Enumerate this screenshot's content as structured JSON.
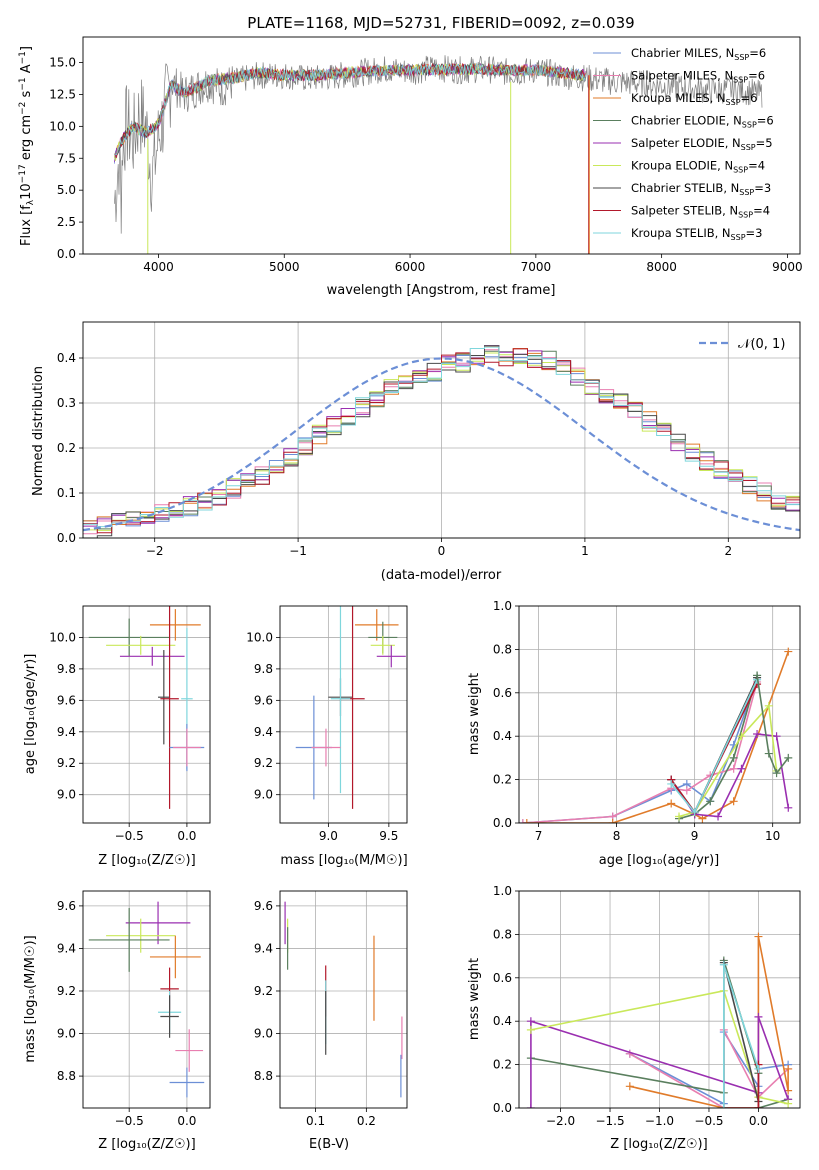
{
  "palette": [
    "#6c8fd6",
    "#e87fb0",
    "#e07b2a",
    "#5a7f5e",
    "#9a2fb0",
    "#c9e85a",
    "#4a4a4a",
    "#b2182b",
    "#7fd6dc"
  ],
  "chart_data": [
    {
      "id": "spectrum",
      "type": "line",
      "title": "PLATE=1168, MJD=52731, FIBERID=0092, z=0.039",
      "xlabel": "wavelength [Angstrom, rest frame]",
      "ylabel_main": "Flux [f",
      "ylabel_sub": "λ",
      "ylabel_rest": "10",
      "ylabel_exp": "−17",
      "ylabel_tail": " erg cm",
      "xlim": [
        3400,
        9100
      ],
      "ylim": [
        0,
        17
      ],
      "xticks": [
        4000,
        5000,
        6000,
        7000,
        8000,
        9000
      ],
      "yticks": [
        0.0,
        2.5,
        5.0,
        7.5,
        10.0,
        12.5,
        15.0
      ],
      "grid": false,
      "legend": "upper-right",
      "data_note": "observed spectrum (grey), 9 SSP model fits overplotted",
      "observed": {
        "name": "data",
        "color": "#808080",
        "x": [
          3650,
          3700,
          3750,
          3800,
          3850,
          3900,
          3950,
          4000,
          4100,
          4200,
          4300,
          4400,
          4500,
          4600,
          4800,
          5000,
          5200,
          5400,
          5600,
          5800,
          6000,
          6200,
          6400,
          6600,
          6800,
          7000,
          7200,
          7400,
          7600,
          7800,
          8000,
          8200,
          8400,
          8600,
          8800
        ],
        "y": [
          4.0,
          9.0,
          10.0,
          9.0,
          11.0,
          10.0,
          6.0,
          9.0,
          13.5,
          12.5,
          13.0,
          13.5,
          13.0,
          13.5,
          14.0,
          14.0,
          13.7,
          13.9,
          14.2,
          14.5,
          14.3,
          14.6,
          14.4,
          14.5,
          14.2,
          14.4,
          14.0,
          13.8,
          13.5,
          13.4,
          13.2,
          13.0,
          12.8,
          12.9,
          12.5
        ]
      },
      "series": [
        {
          "name": "Chabrier MILES",
          "nssp": "6"
        },
        {
          "name": "Salpeter MILES",
          "nssp": "6"
        },
        {
          "name": "Kroupa MILES",
          "nssp": "6"
        },
        {
          "name": "Chabrier ELODIE",
          "nssp": "6"
        },
        {
          "name": "Salpeter ELODIE",
          "nssp": "5"
        },
        {
          "name": "Kroupa ELODIE",
          "nssp": "4"
        },
        {
          "name": "Chabrier STELIB",
          "nssp": "3"
        },
        {
          "name": "Salpeter STELIB",
          "nssp": "4"
        },
        {
          "name": "Kroupa STELIB",
          "nssp": "3"
        }
      ],
      "model_x": [
        3650,
        3700,
        3800,
        3900,
        4000,
        4100,
        4200,
        4300,
        4400,
        4600,
        4800,
        5000,
        5300,
        5600,
        6000,
        6400,
        6800,
        7000,
        7200,
        7400
      ],
      "model_y": [
        7.5,
        8.8,
        10.0,
        9.5,
        10.2,
        13.3,
        12.6,
        13.0,
        13.6,
        13.8,
        14.2,
        14.0,
        14.0,
        14.3,
        14.4,
        14.5,
        14.4,
        14.4,
        14.2,
        14.0
      ]
    },
    {
      "id": "residuals",
      "type": "bar",
      "xlabel": "(data-model)/error",
      "ylabel": "Normed distribution",
      "xlim": [
        -2.5,
        2.5
      ],
      "ylim": [
        0,
        0.48
      ],
      "xticks": [
        -2,
        -1,
        0,
        1,
        2
      ],
      "yticks": [
        0.0,
        0.1,
        0.2,
        0.3,
        0.4
      ],
      "grid": true,
      "legend": "upper-right",
      "legend_label": "𝒩(0, 1)",
      "reference": {
        "name": "normal",
        "mean": 0,
        "sd": 1,
        "color": "#6c8fd6"
      },
      "bin_edges_start": -2.5,
      "bin_width": 0.1,
      "hist": [
        0.02,
        0.025,
        0.035,
        0.04,
        0.05,
        0.055,
        0.06,
        0.07,
        0.08,
        0.095,
        0.11,
        0.125,
        0.14,
        0.16,
        0.18,
        0.2,
        0.23,
        0.25,
        0.27,
        0.29,
        0.31,
        0.33,
        0.35,
        0.36,
        0.37,
        0.385,
        0.39,
        0.4,
        0.41,
        0.405,
        0.41,
        0.4,
        0.395,
        0.38,
        0.36,
        0.34,
        0.32,
        0.3,
        0.28,
        0.26,
        0.24,
        0.21,
        0.19,
        0.17,
        0.15,
        0.13,
        0.115,
        0.1,
        0.085,
        0.07,
        0.06,
        0.05,
        0.04,
        0.035,
        0.03
      ]
    },
    {
      "id": "age_vs_Z",
      "type": "scatter",
      "xlabel": "Z [log₁₀(Z/Z☉)]",
      "ylabel": "age  [log₁₀(age/yr)]",
      "xlim": [
        -0.9,
        0.2
      ],
      "ylim": [
        8.82,
        10.2
      ],
      "xticks": [
        -0.5,
        0.0
      ],
      "xticklabels": [
        "−0.5",
        "0.0"
      ],
      "yticks": [
        9.0,
        9.2,
        9.4,
        9.6,
        9.8,
        10.0
      ],
      "grid": true,
      "points": [
        {
          "x": -0.5,
          "y": 10.0,
          "ex": 0.35,
          "ey": 0.12,
          "c": 3
        },
        {
          "x": -0.4,
          "y": 9.95,
          "ex": 0.3,
          "ey": 0.06,
          "c": 5
        },
        {
          "x": -0.3,
          "y": 9.88,
          "ex": 0.28,
          "ey": 0.06,
          "c": 4
        },
        {
          "x": -0.1,
          "y": 10.08,
          "ex": 0.22,
          "ey": 0.1,
          "c": 2
        },
        {
          "x": -0.2,
          "y": 9.62,
          "ex": 0.05,
          "ey": 0.3,
          "c": 6
        },
        {
          "x": -0.15,
          "y": 9.61,
          "ex": 0.08,
          "ey": 0.7,
          "c": 7
        },
        {
          "x": 0.0,
          "y": 9.61,
          "ex": 0.05,
          "ey": 0.45,
          "c": 8
        },
        {
          "x": 0.0,
          "y": 9.3,
          "ex": 0.15,
          "ey": 0.15,
          "c": 0
        },
        {
          "x": 0.0,
          "y": 9.3,
          "ex": 0.12,
          "ey": 0.12,
          "c": 1
        }
      ]
    },
    {
      "id": "age_vs_mass",
      "type": "scatter",
      "xlabel": "mass [log₁₀(M/M☉)]",
      "xlim": [
        8.6,
        9.65
      ],
      "ylim": [
        8.82,
        10.2
      ],
      "xticks": [
        9.0,
        9.5
      ],
      "xticklabels": [
        "9.0",
        "9.5"
      ],
      "yticks": [
        9.0,
        9.2,
        9.4,
        9.6,
        9.8,
        10.0
      ],
      "grid": true,
      "points": [
        {
          "x": 9.4,
          "y": 10.08,
          "ex": 0.18,
          "ey": 0.1,
          "c": 2
        },
        {
          "x": 9.45,
          "y": 10.0,
          "ex": 0.12,
          "ey": 0.1,
          "c": 3
        },
        {
          "x": 9.45,
          "y": 9.95,
          "ex": 0.1,
          "ey": 0.06,
          "c": 5
        },
        {
          "x": 9.52,
          "y": 9.88,
          "ex": 0.12,
          "ey": 0.07,
          "c": 4
        },
        {
          "x": 9.1,
          "y": 9.62,
          "ex": 0.1,
          "ey": 0.12,
          "c": 6
        },
        {
          "x": 9.2,
          "y": 9.61,
          "ex": 0.1,
          "ey": 0.7,
          "c": 7
        },
        {
          "x": 9.1,
          "y": 9.61,
          "ex": 0.08,
          "ey": 0.6,
          "c": 8
        },
        {
          "x": 8.88,
          "y": 9.3,
          "ex": 0.15,
          "ey": 0.33,
          "c": 0
        },
        {
          "x": 8.98,
          "y": 9.3,
          "ex": 0.12,
          "ey": 0.12,
          "c": 1
        }
      ]
    },
    {
      "id": "weight_vs_age",
      "type": "line",
      "xlabel": "age  [log₁₀(age/yr)]",
      "ylabel": "mass weight",
      "xlim": [
        6.75,
        10.35
      ],
      "ylim": [
        0,
        1.0
      ],
      "xticks": [
        7,
        8,
        9,
        10
      ],
      "yticks": [
        0.0,
        0.2,
        0.4,
        0.6,
        0.8,
        1.0
      ],
      "grid": true,
      "series": [
        {
          "c": 0,
          "x": [
            6.8,
            7.95,
            8.7,
            8.9,
            9.2,
            9.5,
            9.8
          ],
          "y": [
            0.0,
            0.03,
            0.15,
            0.18,
            0.1,
            0.36,
            0.67
          ]
        },
        {
          "c": 1,
          "x": [
            6.8,
            7.95,
            8.7,
            8.9,
            9.2,
            9.5,
            9.8
          ],
          "y": [
            0.0,
            0.03,
            0.16,
            0.15,
            0.22,
            0.25,
            0.65
          ]
        },
        {
          "c": 2,
          "x": [
            6.85,
            7.95,
            8.7,
            9.0,
            9.1,
            9.5,
            10.2
          ],
          "y": [
            0.0,
            0.0,
            0.09,
            0.04,
            0.02,
            0.1,
            0.79
          ]
        },
        {
          "c": 3,
          "x": [
            8.8,
            9.0,
            9.2,
            9.5,
            9.8
          ],
          "y": [
            0.02,
            0.04,
            0.1,
            0.3,
            0.68
          ]
        },
        {
          "c": 4,
          "x": [
            8.7,
            9.0,
            9.3,
            9.6,
            9.8,
            10.05,
            10.2
          ],
          "y": [
            0.2,
            0.04,
            0.03,
            0.25,
            0.41,
            0.4,
            0.07
          ]
        },
        {
          "c": 5,
          "x": [
            8.8,
            9.0,
            9.6,
            9.95,
            10.05
          ],
          "y": [
            0.03,
            0.05,
            0.4,
            0.54,
            0.24
          ]
        },
        {
          "c": 6,
          "x": [
            8.7,
            9.0,
            9.8
          ],
          "y": [
            0.2,
            0.05,
            0.67
          ]
        },
        {
          "c": 7,
          "x": [
            8.7,
            9.0,
            9.8
          ],
          "y": [
            0.2,
            0.05,
            0.64
          ]
        },
        {
          "c": 8,
          "x": [
            8.7,
            9.0,
            9.8
          ],
          "y": [
            0.18,
            0.05,
            0.66
          ]
        },
        {
          "c": 3,
          "x": [
            9.8,
            9.95,
            10.05,
            10.2
          ],
          "y": [
            0.68,
            0.32,
            0.23,
            0.3
          ]
        }
      ]
    },
    {
      "id": "mass_vs_Z",
      "type": "scatter",
      "xlabel": "Z [log₁₀(Z/Z☉)]",
      "ylabel": "mass [log₁₀(M/M☉)]",
      "xlim": [
        -0.9,
        0.2
      ],
      "ylim": [
        8.65,
        9.67
      ],
      "xticks": [
        -0.5,
        0.0
      ],
      "xticklabels": [
        "−0.5",
        "0.0"
      ],
      "yticks": [
        8.8,
        9.0,
        9.2,
        9.4,
        9.6
      ],
      "grid": true,
      "points": [
        {
          "x": -0.25,
          "y": 9.52,
          "ex": 0.28,
          "ey": 0.1,
          "c": 4
        },
        {
          "x": -0.4,
          "y": 9.46,
          "ex": 0.3,
          "ey": 0.08,
          "c": 5
        },
        {
          "x": -0.5,
          "y": 9.44,
          "ex": 0.35,
          "ey": 0.15,
          "c": 3
        },
        {
          "x": -0.1,
          "y": 9.36,
          "ex": 0.22,
          "ey": 0.1,
          "c": 2
        },
        {
          "x": -0.15,
          "y": 9.21,
          "ex": 0.08,
          "ey": 0.1,
          "c": 7
        },
        {
          "x": -0.15,
          "y": 9.1,
          "ex": 0.1,
          "ey": 0.1,
          "c": 8
        },
        {
          "x": -0.15,
          "y": 9.08,
          "ex": 0.08,
          "ey": 0.1,
          "c": 6
        },
        {
          "x": 0.02,
          "y": 8.92,
          "ex": 0.12,
          "ey": 0.1,
          "c": 1
        },
        {
          "x": 0.0,
          "y": 8.77,
          "ex": 0.15,
          "ey": 0.07,
          "c": 0
        }
      ]
    },
    {
      "id": "mass_vs_EBV",
      "type": "scatter",
      "xlabel": "E(B-V)",
      "xlim": [
        0.03,
        0.28
      ],
      "ylim": [
        8.65,
        9.67
      ],
      "xticks": [
        0.1,
        0.2
      ],
      "xticklabels": [
        "0.1",
        "0.2"
      ],
      "yticks": [
        8.8,
        9.0,
        9.2,
        9.4,
        9.6
      ],
      "grid": true,
      "points": [
        {
          "x": 0.04,
          "y": 9.52,
          "ex": 0,
          "ey": 0.1,
          "c": 4
        },
        {
          "x": 0.045,
          "y": 9.46,
          "ex": 0,
          "ey": 0.08,
          "c": 5
        },
        {
          "x": 0.045,
          "y": 9.4,
          "ex": 0,
          "ey": 0.1,
          "c": 3
        },
        {
          "x": 0.215,
          "y": 9.26,
          "ex": 0,
          "ey": 0.2,
          "c": 2
        },
        {
          "x": 0.12,
          "y": 9.2,
          "ex": 0,
          "ey": 0.12,
          "c": 7
        },
        {
          "x": 0.12,
          "y": 9.1,
          "ex": 0,
          "ey": 0.15,
          "c": 8
        },
        {
          "x": 0.12,
          "y": 9.05,
          "ex": 0,
          "ey": 0.15,
          "c": 6
        },
        {
          "x": 0.27,
          "y": 8.98,
          "ex": 0,
          "ey": 0.1,
          "c": 1
        },
        {
          "x": 0.268,
          "y": 8.8,
          "ex": 0,
          "ey": 0.1,
          "c": 0
        }
      ]
    },
    {
      "id": "weight_vs_Z",
      "type": "line",
      "xlabel": "Z [log₁₀(Z/Z☉)]",
      "ylabel": "mass weight",
      "xlim": [
        -2.42,
        0.42
      ],
      "ylim": [
        0,
        1.0
      ],
      "xticks": [
        -2.0,
        -1.5,
        -1.0,
        -0.5,
        0.0
      ],
      "xticklabels": [
        "−2.0",
        "−1.5",
        "−1.0",
        "−0.5",
        "0.0"
      ],
      "yticks": [
        0.0,
        0.2,
        0.4,
        0.6,
        0.8,
        1.0
      ],
      "grid": true,
      "series": [
        {
          "c": 0,
          "x": [
            -1.3,
            -0.35,
            -0.35,
            0.0,
            0.0,
            0.3
          ],
          "y": [
            0.25,
            0.02,
            0.35,
            0.1,
            0.18,
            0.2
          ]
        },
        {
          "c": 1,
          "x": [
            -1.3,
            -0.35,
            -0.35,
            0.0,
            0.3
          ],
          "y": [
            0.25,
            0.0,
            0.36,
            0.05,
            0.18
          ]
        },
        {
          "c": 2,
          "x": [
            -1.3,
            -0.35,
            0.0,
            0.0,
            0.3,
            0.3
          ],
          "y": [
            0.1,
            0.0,
            0.0,
            0.79,
            0.08,
            0.18
          ]
        },
        {
          "c": 3,
          "x": [
            -2.3,
            -0.35,
            -0.35,
            0.0,
            0.0,
            0.3
          ],
          "y": [
            0.23,
            0.07,
            0.68,
            0.16,
            0.0,
            0.04
          ]
        },
        {
          "c": 4,
          "x": [
            -2.3,
            -2.3,
            0.0,
            0.0,
            0.3
          ],
          "y": [
            0.0,
            0.4,
            0.07,
            0.42,
            0.04
          ]
        },
        {
          "c": 5,
          "x": [
            -2.3,
            -0.35,
            0.0,
            0.3
          ],
          "y": [
            0.36,
            0.54,
            0.05,
            0.02
          ]
        },
        {
          "c": 6,
          "x": [
            -0.35,
            -0.35,
            0.0
          ],
          "y": [
            0.0,
            0.67,
            0.03
          ]
        },
        {
          "c": 7,
          "x": [
            -0.35,
            0.0,
            0.0
          ],
          "y": [
            0.0,
            0.0,
            0.2
          ]
        },
        {
          "c": 8,
          "x": [
            -0.35,
            -0.35,
            0.0
          ],
          "y": [
            0.0,
            0.66,
            0.18
          ]
        }
      ]
    }
  ]
}
